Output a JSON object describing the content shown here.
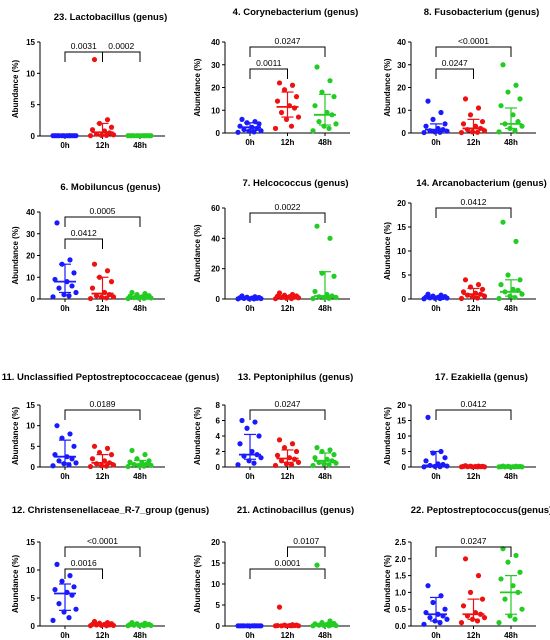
{
  "colors": {
    "0h": "#1a1aff",
    "12h": "#ee1111",
    "48h": "#22cc22"
  },
  "chart_data": [
    {
      "type": "scatter",
      "title": "23. Lactobacillus (genus)",
      "ylabel": "Abundance (%)",
      "categories": [
        "0h",
        "12h",
        "48h"
      ],
      "ylim": [
        0,
        15
      ],
      "yticks": [
        0,
        5,
        10,
        15
      ],
      "series": [
        {
          "category": "0h",
          "values": [
            0.05,
            0.05,
            0.05,
            0.05,
            0.05,
            0.05,
            0.05,
            0.05,
            0.05,
            0.05,
            0.05,
            0.05
          ],
          "median": 0.05,
          "iqr": [
            0.05,
            0.05
          ]
        },
        {
          "category": "12h",
          "values": [
            12.2,
            2.6,
            2.0,
            1.4,
            1.0,
            0.8,
            0.5,
            0.3,
            0.2,
            0.1,
            0.1,
            0.05
          ],
          "median": 0.6,
          "iqr": [
            0.15,
            2.0
          ]
        },
        {
          "category": "48h",
          "values": [
            0.05,
            0.05,
            0.05,
            0.05,
            0.05,
            0.05,
            0.05,
            0.05,
            0.05,
            0.05,
            0.05,
            0.05
          ],
          "median": 0.05,
          "iqr": [
            0.05,
            0.05
          ]
        }
      ],
      "significance": [
        {
          "from": "0h",
          "to": "12h",
          "p": "0.0031"
        },
        {
          "from": "12h",
          "to": "48h",
          "p": "0.0002"
        }
      ]
    },
    {
      "type": "scatter",
      "title": "4. Corynebacterium (genus)",
      "ylabel": "Abundance (%)",
      "categories": [
        "0h",
        "12h",
        "48h"
      ],
      "ylim": [
        0,
        40
      ],
      "yticks": [
        0,
        10,
        20,
        30,
        40
      ],
      "series": [
        {
          "category": "0h",
          "values": [
            6,
            5,
            4.5,
            4,
            3,
            2.5,
            2,
            1.5,
            1,
            0.8,
            0.5,
            0.3
          ],
          "median": 2.5,
          "iqr": [
            1,
            4.5
          ]
        },
        {
          "category": "12h",
          "values": [
            22,
            21,
            19,
            16,
            14,
            12,
            11,
            9,
            7,
            6,
            3,
            2
          ],
          "median": 11.5,
          "iqr": [
            7,
            18
          ]
        },
        {
          "category": "48h",
          "values": [
            29,
            23,
            18,
            16,
            12,
            9,
            8,
            5,
            4,
            3,
            2,
            1
          ],
          "median": 8,
          "iqr": [
            3.5,
            17
          ]
        }
      ],
      "significance": [
        {
          "from": "0h",
          "to": "12h",
          "p": "0.0011"
        },
        {
          "from": "0h",
          "to": "48h",
          "p": "0.0247"
        }
      ]
    },
    {
      "type": "scatter",
      "title": "8. Fusobacterium (genus)",
      "ylabel": "Abundance (%)",
      "categories": [
        "0h",
        "12h",
        "48h"
      ],
      "ylim": [
        0,
        40
      ],
      "yticks": [
        0,
        10,
        20,
        30,
        40
      ],
      "series": [
        {
          "category": "0h",
          "values": [
            14,
            9,
            6,
            4,
            3,
            2,
            1.5,
            1,
            0.8,
            0.5,
            0.3,
            0.2
          ],
          "median": 1.5,
          "iqr": [
            0.5,
            4
          ]
        },
        {
          "category": "12h",
          "values": [
            15,
            11,
            8,
            5,
            4,
            3,
            2,
            1.5,
            1,
            0.5,
            0.3,
            0.2
          ],
          "median": 2,
          "iqr": [
            0.5,
            6
          ]
        },
        {
          "category": "48h",
          "values": [
            30,
            21,
            18,
            15,
            12,
            8,
            5,
            4,
            3,
            2,
            1,
            0.5
          ],
          "median": 4,
          "iqr": [
            2,
            11
          ]
        }
      ],
      "significance": [
        {
          "from": "0h",
          "to": "12h",
          "p": "0.0247"
        },
        {
          "from": "0h",
          "to": "48h",
          "p": "<0.0001"
        }
      ]
    },
    {
      "type": "scatter",
      "title": "6. Mobiluncus (genus)",
      "ylabel": "Abundance (%)",
      "categories": [
        "0h",
        "12h",
        "48h"
      ],
      "ylim": [
        0,
        40
      ],
      "yticks": [
        0,
        10,
        20,
        30,
        40
      ],
      "series": [
        {
          "category": "0h",
          "values": [
            35,
            18,
            16,
            12,
            9,
            8,
            6,
            5,
            3,
            2,
            1.5,
            1
          ],
          "median": 8,
          "iqr": [
            3,
            16
          ]
        },
        {
          "category": "12h",
          "values": [
            16,
            13,
            10,
            8,
            5,
            3,
            2,
            1.5,
            1,
            0.8,
            0.5,
            0.2
          ],
          "median": 2.5,
          "iqr": [
            1,
            10
          ]
        },
        {
          "category": "48h",
          "values": [
            3,
            2.5,
            2,
            1.5,
            1.2,
            1,
            0.8,
            0.6,
            0.5,
            0.4,
            0.3,
            0.2
          ],
          "median": 0.8,
          "iqr": [
            0.4,
            1.5
          ]
        }
      ],
      "significance": [
        {
          "from": "0h",
          "to": "12h",
          "p": "0.0412"
        },
        {
          "from": "0h",
          "to": "48h",
          "p": "0.0005"
        }
      ]
    },
    {
      "type": "scatter",
      "title": "7. Helcococcus (genus)",
      "ylabel": "Abundance (%)",
      "categories": [
        "0h",
        "12h",
        "48h"
      ],
      "ylim": [
        0,
        60
      ],
      "yticks": [
        0,
        20,
        40,
        60
      ],
      "series": [
        {
          "category": "0h",
          "values": [
            2,
            1.5,
            1.2,
            1,
            0.8,
            0.6,
            0.5,
            0.4,
            0.3,
            0.2,
            0.1,
            0.1
          ],
          "median": 0.5,
          "iqr": [
            0.2,
            1.2
          ]
        },
        {
          "category": "12h",
          "values": [
            4,
            3,
            2.5,
            2,
            1.8,
            1.5,
            1.2,
            1,
            0.8,
            0.5,
            0.3,
            0.2
          ],
          "median": 1.2,
          "iqr": [
            0.6,
            2.2
          ]
        },
        {
          "category": "48h",
          "values": [
            48,
            40,
            17,
            15,
            5,
            3,
            2,
            1.5,
            1,
            0.8,
            0.5,
            0.3
          ],
          "median": 2,
          "iqr": [
            0.8,
            18
          ]
        }
      ],
      "significance": [
        {
          "from": "0h",
          "to": "48h",
          "p": "0.0022"
        }
      ]
    },
    {
      "type": "scatter",
      "title": "14. Arcanobacterium (genus)",
      "ylabel": "Abundance (%)",
      "categories": [
        "0h",
        "12h",
        "48h"
      ],
      "ylim": [
        0,
        20
      ],
      "yticks": [
        0,
        5,
        10,
        15,
        20
      ],
      "series": [
        {
          "category": "0h",
          "values": [
            1,
            0.8,
            0.6,
            0.5,
            0.4,
            0.35,
            0.3,
            0.25,
            0.2,
            0.15,
            0.1,
            0.05
          ],
          "median": 0.3,
          "iqr": [
            0.15,
            0.6
          ]
        },
        {
          "category": "12h",
          "values": [
            4,
            3,
            2.5,
            2,
            1.5,
            1.2,
            1,
            0.8,
            0.6,
            0.4,
            0.2,
            0.1
          ],
          "median": 1,
          "iqr": [
            0.5,
            2.2
          ]
        },
        {
          "category": "48h",
          "values": [
            16,
            12,
            5,
            4,
            3,
            2,
            1.8,
            1.5,
            1,
            0.6,
            0.3,
            0.1
          ],
          "median": 1.5,
          "iqr": [
            0.6,
            4
          ]
        }
      ],
      "significance": [
        {
          "from": "0h",
          "to": "48h",
          "p": "0.0412"
        }
      ]
    },
    {
      "type": "scatter",
      "title": "11. Unclassified Peptostreptococcaceae (genus)",
      "ylabel": "Abundance (%)",
      "categories": [
        "0h",
        "12h",
        "48h"
      ],
      "ylim": [
        0,
        15
      ],
      "yticks": [
        0,
        5,
        10,
        15
      ],
      "series": [
        {
          "category": "0h",
          "values": [
            10,
            8,
            7,
            5,
            3,
            2.5,
            2,
            1.5,
            1,
            0.8,
            0.5,
            0.3
          ],
          "median": 2.5,
          "iqr": [
            1,
            6.5
          ]
        },
        {
          "category": "12h",
          "values": [
            5,
            4.5,
            3.5,
            3,
            2,
            1.5,
            1,
            0.8,
            0.5,
            0.3,
            0.2,
            0.1
          ],
          "median": 1,
          "iqr": [
            0.4,
            3
          ]
        },
        {
          "category": "48h",
          "values": [
            4,
            3,
            2,
            1.5,
            1.2,
            1,
            0.8,
            0.6,
            0.4,
            0.3,
            0.2,
            0.1
          ],
          "median": 0.7,
          "iqr": [
            0.3,
            1.6
          ]
        }
      ],
      "significance": [
        {
          "from": "0h",
          "to": "48h",
          "p": "0.0189"
        }
      ]
    },
    {
      "type": "scatter",
      "title": "13. Peptoniphilus (genus)",
      "ylabel": "Abundance (%)",
      "categories": [
        "0h",
        "12h",
        "48h"
      ],
      "ylim": [
        0,
        8
      ],
      "yticks": [
        0,
        2,
        4,
        6,
        8
      ],
      "series": [
        {
          "category": "0h",
          "values": [
            6,
            5.8,
            5,
            4,
            3,
            2,
            1.6,
            1.4,
            1.2,
            0.8,
            0.5,
            0.3
          ],
          "median": 1.6,
          "iqr": [
            1,
            4.2
          ]
        },
        {
          "category": "12h",
          "values": [
            3.5,
            3,
            2.5,
            2,
            1.5,
            1.2,
            1,
            0.8,
            0.6,
            0.4,
            0.3,
            0.2
          ],
          "median": 1.1,
          "iqr": [
            0.6,
            2.2
          ]
        },
        {
          "category": "48h",
          "values": [
            2.5,
            2.2,
            2,
            1.6,
            1.2,
            1,
            0.8,
            0.6,
            0.5,
            0.4,
            0.3,
            0.2
          ],
          "median": 0.8,
          "iqr": [
            0.5,
            1.8
          ]
        }
      ],
      "significance": [
        {
          "from": "0h",
          "to": "48h",
          "p": "0.0247"
        }
      ]
    },
    {
      "type": "scatter",
      "title": "17. Ezakiella (genus)",
      "ylabel": "Abundance (%)",
      "categories": [
        "0h",
        "12h",
        "48h"
      ],
      "ylim": [
        0,
        20
      ],
      "yticks": [
        0,
        5,
        10,
        15,
        20
      ],
      "series": [
        {
          "category": "0h",
          "values": [
            16,
            5,
            4.5,
            3,
            2,
            1,
            0.8,
            0.5,
            0.3,
            0.2,
            0.1,
            0.05
          ],
          "median": 0.5,
          "iqr": [
            0.2,
            5
          ]
        },
        {
          "category": "12h",
          "values": [
            0.4,
            0.3,
            0.25,
            0.2,
            0.2,
            0.15,
            0.1,
            0.1,
            0.05,
            0.05,
            0.05,
            0.05
          ],
          "median": 0.1,
          "iqr": [
            0.05,
            0.2
          ]
        },
        {
          "category": "48h",
          "values": [
            0.3,
            0.25,
            0.2,
            0.15,
            0.1,
            0.1,
            0.1,
            0.05,
            0.05,
            0.05,
            0.05,
            0.05
          ],
          "median": 0.05,
          "iqr": [
            0.05,
            0.15
          ]
        }
      ],
      "significance": [
        {
          "from": "0h",
          "to": "48h",
          "p": "0.0412"
        }
      ]
    },
    {
      "type": "scatter",
      "title": "12. Christensenellaceae_R-7_group (genus)",
      "ylabel": "Abundance (%)",
      "categories": [
        "0h",
        "12h",
        "48h"
      ],
      "ylim": [
        0,
        15
      ],
      "yticks": [
        0,
        5,
        10,
        15
      ],
      "series": [
        {
          "category": "0h",
          "values": [
            11,
            9,
            8,
            7,
            6.5,
            6,
            5.5,
            4,
            3,
            2.5,
            1.5,
            1
          ],
          "median": 5.8,
          "iqr": [
            2.8,
            7.5
          ]
        },
        {
          "category": "12h",
          "values": [
            0.8,
            0.6,
            0.5,
            0.4,
            0.3,
            0.3,
            0.2,
            0.2,
            0.1,
            0.1,
            0.05,
            0.05
          ],
          "median": 0.2,
          "iqr": [
            0.1,
            0.4
          ]
        },
        {
          "category": "48h",
          "values": [
            0.6,
            0.5,
            0.4,
            0.3,
            0.25,
            0.2,
            0.2,
            0.15,
            0.1,
            0.1,
            0.05,
            0.05
          ],
          "median": 0.2,
          "iqr": [
            0.1,
            0.3
          ]
        }
      ],
      "significance": [
        {
          "from": "0h",
          "to": "12h",
          "p": "0.0016"
        },
        {
          "from": "0h",
          "to": "48h",
          "p": "<0.0001"
        }
      ]
    },
    {
      "type": "scatter",
      "title": "21. Actinobacillus (genus)",
      "ylabel": "Abundance (%)",
      "categories": [
        "0h",
        "12h",
        "48h"
      ],
      "ylim": [
        0,
        20
      ],
      "yticks": [
        0,
        5,
        10,
        15,
        20
      ],
      "series": [
        {
          "category": "0h",
          "values": [
            0.05,
            0.05,
            0.05,
            0.05,
            0.05,
            0.05,
            0.05,
            0.05,
            0.05,
            0.05,
            0.05,
            0.05
          ],
          "median": 0.05,
          "iqr": [
            0.05,
            0.05
          ]
        },
        {
          "category": "12h",
          "values": [
            4.5,
            0.3,
            0.2,
            0.2,
            0.1,
            0.1,
            0.1,
            0.05,
            0.05,
            0.05,
            0.05,
            0.05
          ],
          "median": 0.1,
          "iqr": [
            0.05,
            0.2
          ]
        },
        {
          "category": "48h",
          "values": [
            14.5,
            1.2,
            0.8,
            0.6,
            0.5,
            0.4,
            0.3,
            0.2,
            0.1,
            0.1,
            0.05,
            0.05
          ],
          "median": 0.3,
          "iqr": [
            0.1,
            0.6
          ]
        }
      ],
      "significance": [
        {
          "from": "0h",
          "to": "48h",
          "p": "0.0001"
        },
        {
          "from": "12h",
          "to": "48h",
          "p": "0.0107"
        }
      ]
    },
    {
      "type": "scatter",
      "title": "22. Peptostreptococcus(genus)",
      "ylabel": "Abundance (%)",
      "categories": [
        "0h",
        "12h",
        "48h"
      ],
      "ylim": [
        0,
        2.5
      ],
      "yticks": [
        0,
        0.5,
        1.0,
        1.5,
        2.0,
        2.5
      ],
      "series": [
        {
          "category": "0h",
          "values": [
            1.2,
            0.9,
            0.7,
            0.5,
            0.4,
            0.35,
            0.3,
            0.25,
            0.2,
            0.15,
            0.1,
            0.05
          ],
          "median": 0.35,
          "iqr": [
            0.15,
            0.85
          ]
        },
        {
          "category": "12h",
          "values": [
            2.0,
            1.5,
            1.0,
            0.8,
            0.6,
            0.4,
            0.35,
            0.3,
            0.25,
            0.2,
            0.15,
            0.1
          ],
          "median": 0.35,
          "iqr": [
            0.2,
            0.8
          ]
        },
        {
          "category": "48h",
          "values": [
            2.3,
            2.1,
            1.9,
            1.6,
            1.4,
            1.2,
            1.0,
            0.8,
            0.5,
            0.3,
            0.2,
            0.1
          ],
          "median": 1.0,
          "iqr": [
            0.35,
            1.5
          ]
        }
      ],
      "significance": [
        {
          "from": "0h",
          "to": "48h",
          "p": "0.0247"
        }
      ]
    }
  ]
}
